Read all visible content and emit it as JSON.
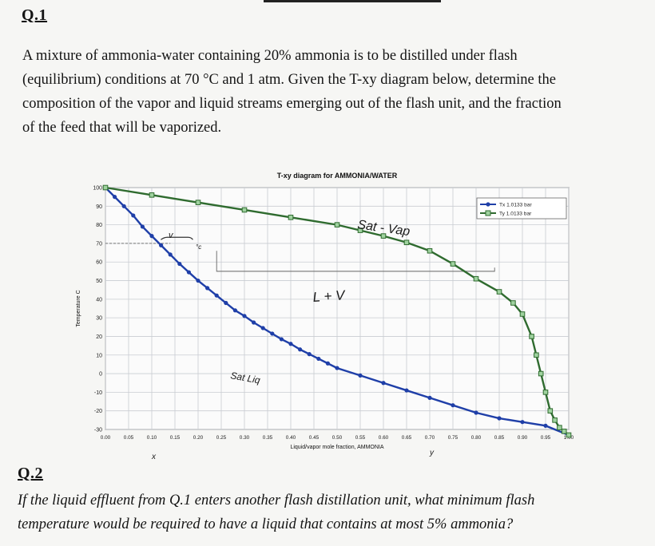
{
  "q1": {
    "heading": "Q.1",
    "lines": [
      "A mixture of ammonia-water containing 20% ammonia is to be distilled under flash",
      "(equilibrium) conditions at 70 °C and 1 atm. Given the T-xy diagram below, determine the",
      "composition of the vapor and liquid streams emerging out of the flash unit, and the fraction",
      "of the feed that will be vaporized."
    ]
  },
  "q2": {
    "heading": "Q.2",
    "lines": [
      "If the liquid effluent from Q.1 enters another flash distillation unit, what minimum flash",
      "temperature would be required to have a liquid that contains at most 5% ammonia?"
    ]
  },
  "handwriting": {
    "sat_vap": "Sat - Vap",
    "l_plus_v": "L + V",
    "sat_liq": "Sat Liq",
    "x_mark": "x",
    "y_mark": "y",
    "v_mark": "v",
    "deg_mark": "°c"
  },
  "colors": {
    "liquid_series": "#1f3fa8",
    "vapor_series": "#2f6b2f",
    "grid": "#c9ccd2",
    "annotation_line": "#777777"
  },
  "chart_data": {
    "type": "line",
    "title": "T-xy diagram for AMMONIA/WATER",
    "xlabel": "Liquid/vapor mole fraction, AMMONIA",
    "ylabel": "Temperature C",
    "xlim": [
      0,
      1
    ],
    "ylim": [
      -30,
      100
    ],
    "grid": true,
    "legend_position": "top-right",
    "x_ticks": [
      "0.00",
      "0.05",
      "0.10",
      "0.15",
      "0.20",
      "0.25",
      "0.30",
      "0.35",
      "0.40",
      "0.45",
      "0.50",
      "0.55",
      "0.60",
      "0.65",
      "0.70",
      "0.75",
      "0.80",
      "0.85",
      "0.90",
      "0.95",
      "1.00"
    ],
    "y_ticks": [
      -30,
      -20,
      -10,
      0,
      10,
      20,
      30,
      40,
      50,
      60,
      70,
      80,
      90,
      100
    ],
    "series": [
      {
        "name": "Tx 1.0133 bar",
        "color": "#1f3fa8",
        "x": [
          0.0,
          0.02,
          0.04,
          0.06,
          0.08,
          0.1,
          0.12,
          0.14,
          0.16,
          0.18,
          0.2,
          0.22,
          0.24,
          0.26,
          0.28,
          0.3,
          0.32,
          0.34,
          0.36,
          0.38,
          0.4,
          0.42,
          0.44,
          0.46,
          0.48,
          0.5,
          0.55,
          0.6,
          0.65,
          0.7,
          0.75,
          0.8,
          0.85,
          0.9,
          0.95,
          1.0
        ],
        "y": [
          100,
          95,
          90,
          85,
          79,
          74,
          69,
          64,
          59,
          54.5,
          50,
          46,
          42,
          38,
          34,
          31,
          27.5,
          24.5,
          21.5,
          18.5,
          16,
          13,
          10.5,
          8,
          5.5,
          3,
          -1,
          -5,
          -9,
          -13,
          -17,
          -21,
          -24,
          -26,
          -28,
          -33
        ]
      },
      {
        "name": "Ty 1.0133 bar",
        "color": "#2f6b2f",
        "x": [
          0.0,
          0.1,
          0.2,
          0.3,
          0.4,
          0.5,
          0.55,
          0.6,
          0.65,
          0.7,
          0.75,
          0.8,
          0.85,
          0.88,
          0.9,
          0.92,
          0.93,
          0.94,
          0.95,
          0.96,
          0.97,
          0.98,
          0.99,
          1.0
        ],
        "y": [
          100,
          96,
          92,
          88,
          84,
          80,
          77,
          74,
          70.5,
          66,
          59,
          51,
          44,
          38,
          32,
          20,
          10,
          0,
          -10,
          -20,
          -25,
          -29,
          -31,
          -33
        ]
      }
    ]
  }
}
